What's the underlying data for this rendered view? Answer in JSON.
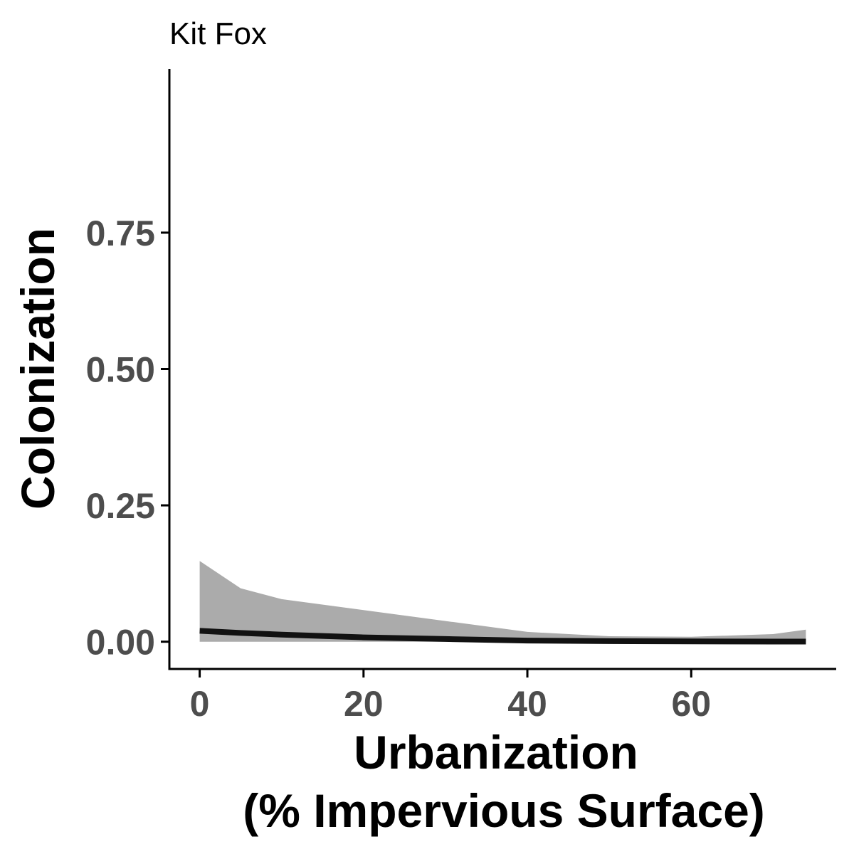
{
  "chart_data": {
    "type": "line",
    "title": "Kit Fox",
    "xlabel_lines": [
      "Urbanization",
      "(% Impervious Surface)"
    ],
    "ylabel": "Colonization",
    "xlim": [
      -3.7,
      77.7
    ],
    "ylim": [
      -0.05,
      1.05
    ],
    "x_ticks": [
      0,
      20,
      40,
      60
    ],
    "x_tick_labels": [
      "0",
      "20",
      "40",
      "60"
    ],
    "y_ticks": [
      0,
      0.25,
      0.5,
      0.75
    ],
    "y_tick_labels": [
      "0.00",
      "0.25",
      "0.50",
      "0.75"
    ],
    "grid": false,
    "series": [
      {
        "x": [
          0,
          5,
          10,
          20,
          30,
          40,
          50,
          60,
          70,
          74
        ],
        "y": [
          0.02,
          0.016,
          0.013,
          0.008,
          0.005,
          0.002,
          0.001,
          0.0005,
          0.0003,
          0.0002
        ],
        "ci_upper": [
          0.148,
          0.098,
          0.078,
          0.058,
          0.038,
          0.018,
          0.01,
          0.009,
          0.014,
          0.022
        ],
        "ci_lower": [
          0,
          0,
          0,
          0,
          0,
          0,
          0,
          0,
          0,
          0
        ]
      }
    ],
    "colors": {
      "line": "#111111",
      "ribbon": "#ababab",
      "axis": "#000000",
      "tick_text": "#4d4d4d"
    }
  }
}
